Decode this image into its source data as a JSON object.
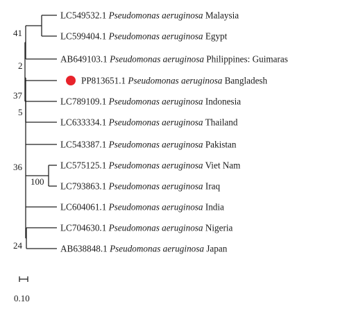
{
  "figure": {
    "taxa": [
      {
        "accession": "LC549532.1",
        "species": "Pseudomonas aeruginosa",
        "country": "Malaysia",
        "highlighted": false
      },
      {
        "accession": "LC599404.1",
        "species": "Pseudomonas aeruginosa",
        "country": "Egypt",
        "highlighted": false
      },
      {
        "accession": "AB649103.1",
        "species": "Pseudomonas aeruginosa",
        "country": "Philippines: Guimaras",
        "highlighted": false
      },
      {
        "accession": "PP813651.1",
        "species": "Pseudomonas aeruginosa",
        "country": "Bangladesh",
        "highlighted": true
      },
      {
        "accession": "LC789109.1",
        "species": "Pseudomonas aeruginosa",
        "country": "Indonesia",
        "highlighted": false
      },
      {
        "accession": "LC633334.1",
        "species": "Pseudomonas aeruginosa",
        "country": "Thailand",
        "highlighted": false
      },
      {
        "accession": "LC543387.1",
        "species": "Pseudomonas aeruginosa",
        "country": "Pakistan",
        "highlighted": false
      },
      {
        "accession": "LC575125.1",
        "species": "Pseudomonas aeruginosa",
        "country": "Viet Nam",
        "highlighted": false
      },
      {
        "accession": "LC793863.1",
        "species": "Pseudomonas aeruginosa",
        "country": "Iraq",
        "highlighted": false
      },
      {
        "accession": "LC604061.1",
        "species": "Pseudomonas aeruginosa",
        "country": "India",
        "highlighted": false
      },
      {
        "accession": "LC704630.1",
        "species": "Pseudomonas aeruginosa",
        "country": "Nigeria",
        "highlighted": false
      },
      {
        "accession": "AB638848.1",
        "species": "Pseudomonas aeruginosa",
        "country": "Japan",
        "highlighted": false
      }
    ],
    "bootstrap_values": [
      "41",
      "2",
      "37",
      "5",
      "36",
      "100",
      "24"
    ],
    "scale_bar": {
      "value": "0.10"
    },
    "highlight_color": "#e8232b"
  }
}
